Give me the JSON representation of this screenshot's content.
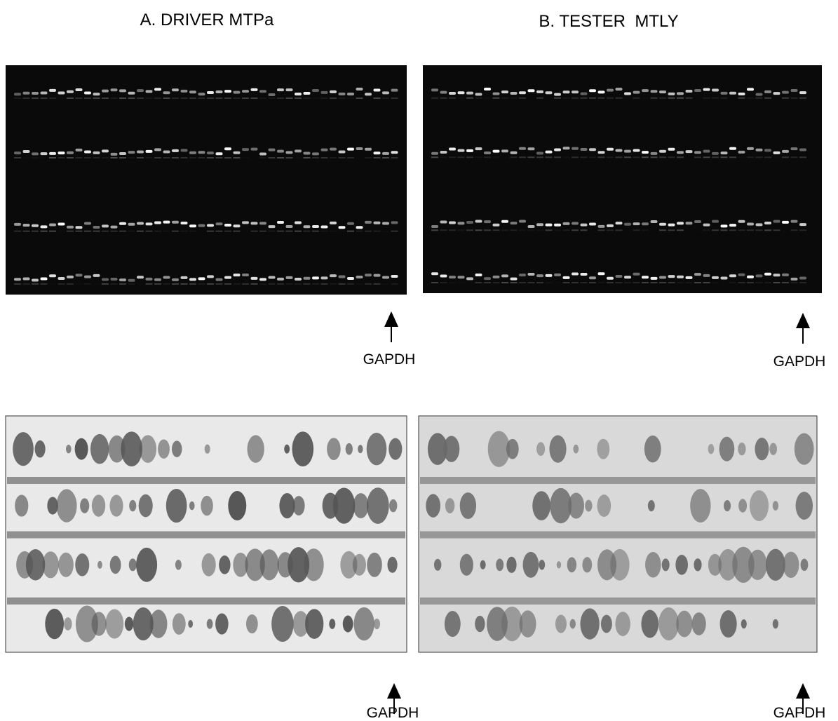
{
  "panels": [
    {
      "title": "A. DRIVER MTPa",
      "labels": [
        "GAPDH",
        "GAPDH"
      ]
    },
    {
      "title": "B. TESTER  MTLY",
      "labels": [
        "GAPDH",
        "GAPDH"
      ]
    }
  ]
}
